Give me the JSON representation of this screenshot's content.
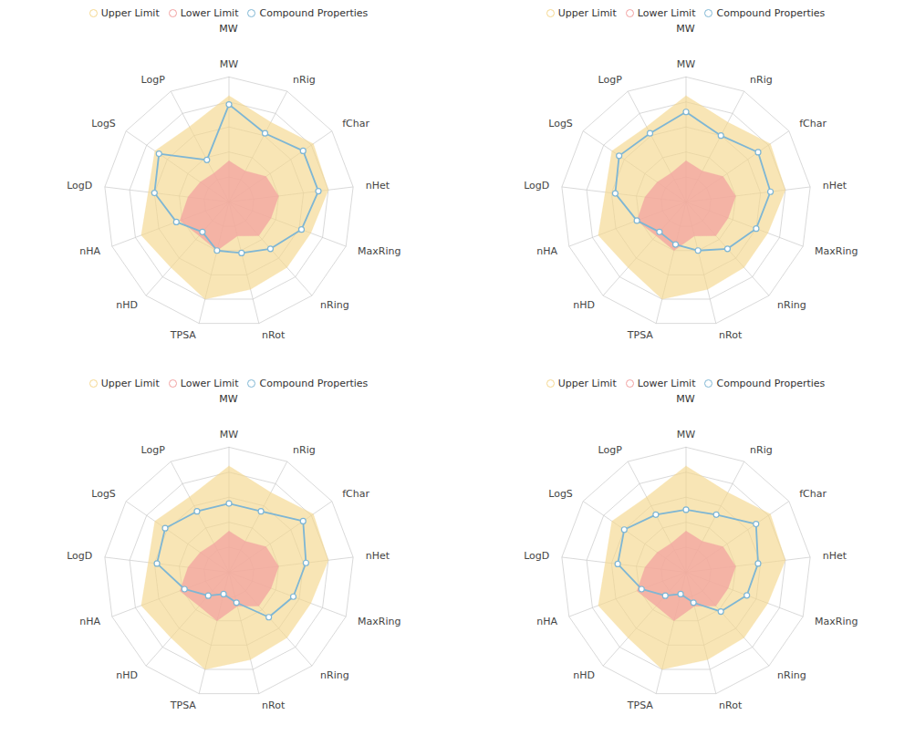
{
  "chart_data": [
    {
      "type": "radar",
      "categories": [
        "MW",
        "nRig",
        "fChar",
        "nHet",
        "MaxRing",
        "nRing",
        "nRot",
        "TPSA",
        "nHD",
        "nHA",
        "LogD",
        "LogS",
        "LogP"
      ],
      "series": [
        {
          "name": "Upper Limit",
          "color": "#F5D78E",
          "values": [
            0.85,
            0.72,
            0.82,
            0.8,
            0.7,
            0.7,
            0.72,
            0.8,
            0.7,
            0.75,
            0.65,
            0.72,
            0.68
          ]
        },
        {
          "name": "Lower Limit",
          "color": "#F2A0A0",
          "values": [
            0.33,
            0.28,
            0.36,
            0.4,
            0.36,
            0.36,
            0.28,
            0.4,
            0.36,
            0.42,
            0.33,
            0.28,
            0.26
          ]
        },
        {
          "name": "Compound Properties",
          "color": "#7EB6D4",
          "values": [
            0.78,
            0.62,
            0.72,
            0.72,
            0.62,
            0.5,
            0.42,
            0.4,
            0.32,
            0.45,
            0.6,
            0.68,
            0.38
          ]
        }
      ],
      "ylim": [
        0,
        1
      ],
      "yticks": [
        0.2,
        0.4,
        0.6,
        0.8,
        1.0
      ],
      "grid": true,
      "legend": "top",
      "tick_labels": "x",
      "annotations": [
        "MW"
      ]
    },
    {
      "type": "radar",
      "categories": [
        "MW",
        "nRig",
        "fChar",
        "nHet",
        "MaxRing",
        "nRing",
        "nRot",
        "TPSA",
        "nHD",
        "nHA",
        "LogD",
        "LogS",
        "LogP"
      ],
      "series": [
        {
          "name": "Upper Limit",
          "color": "#F5D78E",
          "values": [
            0.85,
            0.72,
            0.82,
            0.8,
            0.7,
            0.7,
            0.72,
            0.8,
            0.7,
            0.75,
            0.65,
            0.72,
            0.68
          ]
        },
        {
          "name": "Lower Limit",
          "color": "#F2A0A0",
          "values": [
            0.33,
            0.28,
            0.36,
            0.4,
            0.36,
            0.36,
            0.28,
            0.4,
            0.36,
            0.42,
            0.33,
            0.28,
            0.26
          ]
        },
        {
          "name": "Compound Properties",
          "color": "#7EB6D4",
          "values": [
            0.72,
            0.6,
            0.7,
            0.68,
            0.6,
            0.5,
            0.4,
            0.35,
            0.32,
            0.42,
            0.57,
            0.65,
            0.62
          ]
        }
      ],
      "ylim": [
        0,
        1
      ],
      "yticks": [
        0.2,
        0.4,
        0.6,
        0.8,
        1.0
      ],
      "grid": true,
      "legend": "top",
      "tick_labels": "x",
      "annotations": [
        "MW"
      ]
    },
    {
      "type": "radar",
      "categories": [
        "MW",
        "nRig",
        "fChar",
        "nHet",
        "MaxRing",
        "nRing",
        "nRot",
        "TPSA",
        "nHD",
        "nHA",
        "LogD",
        "LogS",
        "LogP"
      ],
      "series": [
        {
          "name": "Upper Limit",
          "color": "#F5D78E",
          "values": [
            0.85,
            0.72,
            0.82,
            0.8,
            0.7,
            0.7,
            0.72,
            0.8,
            0.7,
            0.75,
            0.65,
            0.72,
            0.68
          ]
        },
        {
          "name": "Lower Limit",
          "color": "#F2A0A0",
          "values": [
            0.33,
            0.28,
            0.36,
            0.4,
            0.36,
            0.36,
            0.28,
            0.4,
            0.36,
            0.42,
            0.33,
            0.28,
            0.26
          ]
        },
        {
          "name": "Compound Properties",
          "color": "#7EB6D4",
          "values": [
            0.55,
            0.55,
            0.72,
            0.62,
            0.55,
            0.48,
            0.25,
            0.18,
            0.25,
            0.38,
            0.58,
            0.62,
            0.55
          ]
        }
      ],
      "ylim": [
        0,
        1
      ],
      "yticks": [
        0.2,
        0.4,
        0.6,
        0.8,
        1.0
      ],
      "grid": true,
      "legend": "top",
      "tick_labels": "x",
      "annotations": [
        "MW"
      ]
    },
    {
      "type": "radar",
      "categories": [
        "MW",
        "nRig",
        "fChar",
        "nHet",
        "MaxRing",
        "nRing",
        "nRot",
        "TPSA",
        "nHD",
        "nHA",
        "LogD",
        "LogS",
        "LogP"
      ],
      "series": [
        {
          "name": "Upper Limit",
          "color": "#F5D78E",
          "values": [
            0.85,
            0.72,
            0.82,
            0.8,
            0.7,
            0.7,
            0.72,
            0.8,
            0.7,
            0.75,
            0.65,
            0.72,
            0.68
          ]
        },
        {
          "name": "Lower Limit",
          "color": "#F2A0A0",
          "values": [
            0.33,
            0.28,
            0.36,
            0.4,
            0.36,
            0.36,
            0.28,
            0.4,
            0.36,
            0.42,
            0.33,
            0.28,
            0.26
          ]
        },
        {
          "name": "Compound Properties",
          "color": "#7EB6D4",
          "values": [
            0.5,
            0.52,
            0.68,
            0.58,
            0.52,
            0.42,
            0.25,
            0.18,
            0.25,
            0.38,
            0.55,
            0.6,
            0.52
          ]
        }
      ],
      "ylim": [
        0,
        1
      ],
      "yticks": [
        0.2,
        0.4,
        0.6,
        0.8,
        1.0
      ],
      "grid": true,
      "legend": "top",
      "tick_labels": "x",
      "annotations": [
        "MW"
      ]
    }
  ]
}
